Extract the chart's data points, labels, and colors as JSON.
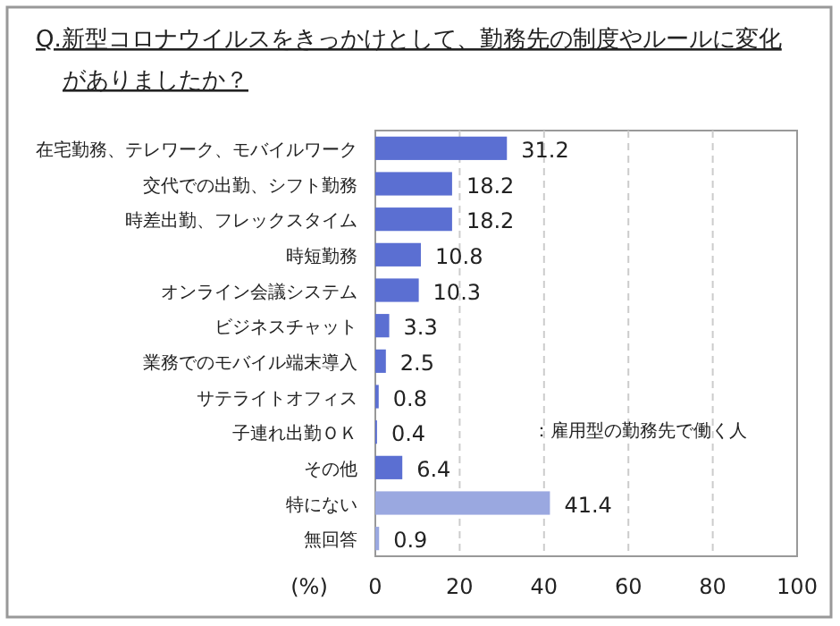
{
  "chart_data": {
    "type": "bar",
    "orientation": "horizontal",
    "title": "Q.新型コロナウイルスをきっかけとして、勤務先の制度やルールに変化がありましたか？",
    "xlabel": "(%)",
    "categories": [
      "在宅勤務、テレワーク、モバイルワーク",
      "交代での出勤、シフト勤務",
      "時差出勤、フレックスタイム",
      "時短勤務",
      "オンライン会議システム",
      "ビジネスチャット",
      "業務でのモバイル端末導入",
      "サテライトオフィス",
      "子連れ出勤ＯＫ",
      "その他",
      "特にない",
      "無回答"
    ],
    "values": [
      31.2,
      18.2,
      18.2,
      10.8,
      10.3,
      3.3,
      2.5,
      0.8,
      0.4,
      6.4,
      41.4,
      0.9
    ],
    "colors": [
      "#5b6fd2",
      "#5b6fd2",
      "#5b6fd2",
      "#5b6fd2",
      "#5b6fd2",
      "#5b6fd2",
      "#5b6fd2",
      "#5b6fd2",
      "#5b6fd2",
      "#5b6fd2",
      "#9aa8e0",
      "#9aa8e0"
    ],
    "data_labels": true,
    "xlim": [
      0,
      100
    ],
    "xticks": [
      0,
      20,
      40,
      60,
      80,
      100
    ],
    "grid": "x",
    "annotations": [
      "：雇用型の勤務先で働く人"
    ]
  }
}
